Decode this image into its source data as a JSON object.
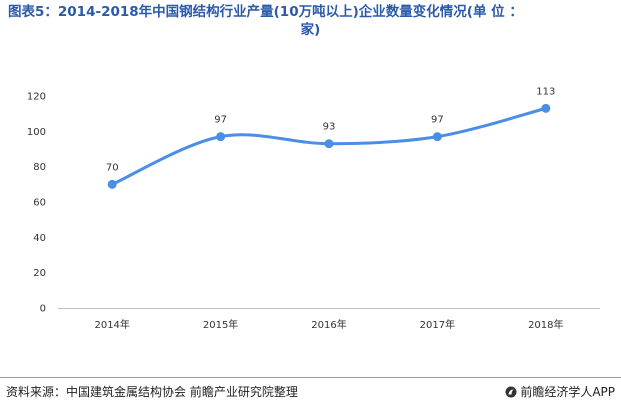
{
  "title": {
    "line1": "图表5：2014-2018年中国钢结构行业产量(10万吨以上)企业数量变化情况(单 位 ：",
    "line2": "家)"
  },
  "source": "资料来源：中国建筑金属结构协会 前瞻产业研究院整理",
  "brand": "前瞻经济学人APP",
  "colors": {
    "title": "#2b5aa8",
    "line": "#4a8ee6",
    "point": "#4a8ee6",
    "gridline": "#d9d9d9",
    "axis": "#bfbfbf"
  },
  "chart_data": {
    "type": "line",
    "x": [
      "2014年",
      "2015年",
      "2016年",
      "2017年",
      "2018年"
    ],
    "series": [
      {
        "values": [
          70,
          97,
          93,
          97,
          113
        ]
      }
    ],
    "ylim": [
      0,
      120
    ],
    "yticks": [
      0,
      20,
      40,
      60,
      80,
      100,
      120
    ],
    "grid": false,
    "smooth": true
  }
}
